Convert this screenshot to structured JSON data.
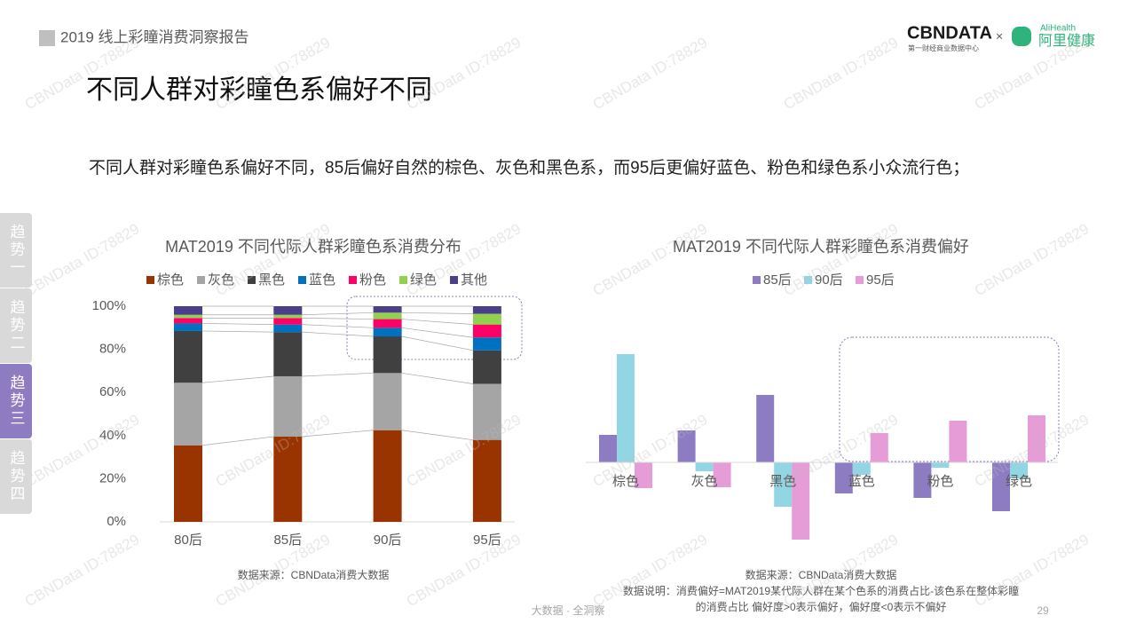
{
  "header": {
    "report_title": "2019 线上彩瞳消费洞察报告",
    "logo_main": "CBNDATA",
    "logo_sub": "第一财经商业数据中心",
    "logo_x": "×",
    "logo2_en": "AliHealth",
    "logo2_cn": "阿里健康"
  },
  "title": "不同人群对彩瞳色系偏好不同",
  "description": "不同人群对彩瞳色系偏好不同，85后偏好自然的棕色、灰色和黑色系，而95后更偏好蓝色、粉色和绿色系小众流行色；",
  "sidebar": [
    "趋势一",
    "趋势二",
    "趋势三",
    "趋势四"
  ],
  "watermark": "CBNData ID:78829",
  "footer": {
    "tagline": "大数据 · 全洞察",
    "page": 29
  },
  "chart_data": [
    {
      "type": "stacked_bar",
      "title": "MAT2019 不同代际人群彩瞳色系消费分布",
      "categories": [
        "80后",
        "85后",
        "90后",
        "95后"
      ],
      "series": [
        {
          "name": "棕色",
          "color": "#993300",
          "values": [
            35.5,
            39.5,
            42.5,
            38
          ]
        },
        {
          "name": "灰色",
          "color": "#a5a5a5",
          "values": [
            29,
            28,
            26.5,
            26
          ]
        },
        {
          "name": "黑色",
          "color": "#404040",
          "values": [
            24,
            20.5,
            17,
            15.5
          ]
        },
        {
          "name": "蓝色",
          "color": "#0070c0",
          "values": [
            3.5,
            3.5,
            4,
            6
          ]
        },
        {
          "name": "粉色",
          "color": "#ff0066",
          "values": [
            2.5,
            3,
            4,
            6
          ]
        },
        {
          "name": "绿色",
          "color": "#92d050",
          "values": [
            1.5,
            1.5,
            3,
            5
          ]
        },
        {
          "name": "其他",
          "color": "#4b3f8c",
          "values": [
            4,
            4,
            3,
            3.5
          ]
        }
      ],
      "ylim": [
        0,
        100
      ],
      "yticks": [
        {
          "value": 0,
          "label": "0%"
        },
        {
          "value": 20,
          "label": "20%"
        },
        {
          "value": 40,
          "label": "40%"
        },
        {
          "value": 60,
          "label": "60%"
        },
        {
          "value": 80,
          "label": "80%"
        },
        {
          "value": 100,
          "label": "100%"
        }
      ],
      "source": "数据来源：CBNData消费大数据"
    },
    {
      "type": "grouped_bar",
      "title": "MAT2019 不同代际人群彩瞳色系消费偏好",
      "categories": [
        "棕色",
        "灰色",
        "黑色",
        "蓝色",
        "粉色",
        "绿色"
      ],
      "series": [
        {
          "name": "85后",
          "color": "#8e7cc3",
          "values": [
            3.1,
            3.6,
            7.6,
            -3.5,
            -4.0,
            -5.5
          ]
        },
        {
          "name": "90后",
          "color": "#92d6e3",
          "values": [
            12.2,
            -1.0,
            -5.0,
            -1.4,
            -0.6,
            -1.8
          ]
        },
        {
          "name": "95后",
          "color": "#e69cd6",
          "values": [
            -2.9,
            -2.8,
            -8.7,
            3.3,
            4.7,
            5.3
          ]
        }
      ],
      "ylim": [
        -9,
        13
      ],
      "source": "数据来源：CBNData消费大数据",
      "note": [
        "数据说明：消费偏好=MAT2019某代际人群在某个色系的消费占比-该色系在整体彩瞳",
        "的消费占比 偏好度>0表示偏好，偏好度<0表示不偏好"
      ]
    }
  ]
}
